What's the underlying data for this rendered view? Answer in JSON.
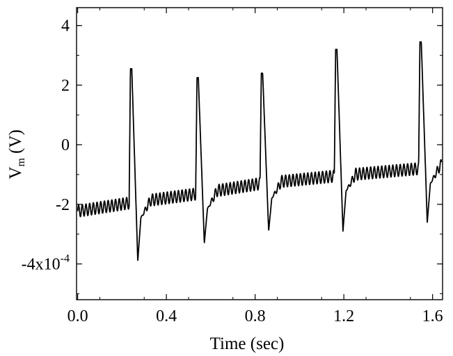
{
  "chart_data": {
    "type": "line",
    "title": "",
    "xlabel": "Time (sec)",
    "ylabel": {
      "base": "V",
      "subscript": "m",
      "unit": " (V)"
    },
    "xlim": [
      -0.005,
      1.645
    ],
    "ylim": [
      -0.00052,
      0.00046
    ],
    "x_ticks": [
      0.0,
      0.4,
      0.8,
      1.2,
      1.6
    ],
    "x_tick_labels": [
      "0.0",
      "0.4",
      "0.8",
      "1.2",
      "1.6"
    ],
    "y_ticks": [
      0.0004,
      0.0002,
      0.0,
      -0.0002,
      -0.0004
    ],
    "y_tick_labels": [
      "4",
      "2",
      "0",
      "-2",
      "-4"
    ],
    "y_multiplier_label": {
      "base": "x10",
      "exponent": "-4"
    },
    "grid": false,
    "legend": "none",
    "line_color": "#000000",
    "series": [
      {
        "spikes": [
          {
            "time": 0.238,
            "peak": 0.000255,
            "trough": -0.00039
          },
          {
            "time": 0.538,
            "peak": 0.000225,
            "trough": -0.00033
          },
          {
            "time": 0.828,
            "peak": 0.00024,
            "trough": -0.00029
          },
          {
            "time": 1.163,
            "peak": 0.00032,
            "trough": -0.00029
          },
          {
            "time": 1.543,
            "peak": 0.000345,
            "trough": -0.00026
          }
        ],
        "baseline": [
          [
            0.0,
            -0.000223
          ],
          [
            0.238,
            -0.000195
          ],
          [
            0.538,
            -0.000165
          ],
          [
            0.828,
            -0.00013
          ],
          [
            1.163,
            -0.000105
          ],
          [
            1.543,
            -8e-05
          ],
          [
            1.64,
            -7e-05
          ]
        ],
        "oscillation_amplitude": 2e-05,
        "oscillation_frequency_hz": 60
      }
    ]
  }
}
